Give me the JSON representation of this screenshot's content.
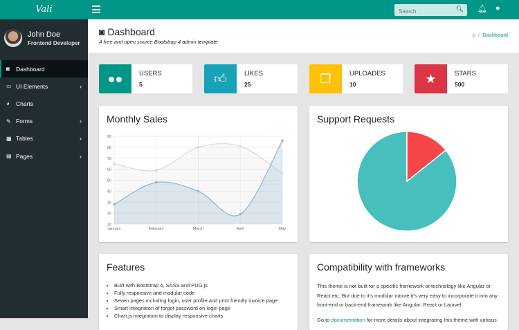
{
  "app": {
    "logo": "Vali"
  },
  "topbar": {
    "search_placeholder": "Search",
    "icons": [
      "menu-icon",
      "search-icon",
      "bell-icon",
      "user-icon"
    ]
  },
  "user": {
    "name": "John Doe",
    "role": "Frontend Developer"
  },
  "sidebar": {
    "items": [
      {
        "label": "Dashboard",
        "icon": "◙",
        "active": true,
        "chevron": false
      },
      {
        "label": "UI Elements",
        "icon": "▭",
        "chevron": true
      },
      {
        "label": "Charts",
        "icon": "◕",
        "chevron": false
      },
      {
        "label": "Forms",
        "icon": "✎",
        "chevron": true
      },
      {
        "label": "Tables",
        "icon": "▦",
        "chevron": true
      },
      {
        "label": "Pages",
        "icon": "▤",
        "chevron": true
      }
    ],
    "chevron": "›"
  },
  "header": {
    "title": "Dashboard",
    "subtitle": "A free and open source Bootstrap 4 admin template",
    "breadcrumb_home": "⌂",
    "breadcrumb_sep": "/",
    "breadcrumb_current": "Dashboard"
  },
  "widgets": [
    {
      "label": "USERS",
      "value": "5",
      "color": "#009688",
      "icon": "users"
    },
    {
      "label": "LIKES",
      "value": "25",
      "color": "#17a2b8",
      "icon": "thumbs-up"
    },
    {
      "label": "UPLOADES",
      "value": "10",
      "color": "#ffc107",
      "icon": "files"
    },
    {
      "label": "STARS",
      "value": "500",
      "color": "#dc3545",
      "icon": "star"
    }
  ],
  "cards": {
    "monthly_sales": "Monthly Sales",
    "support": "Support Requests",
    "features": "Features",
    "compat": "Compatibility with frameworks"
  },
  "features": [
    "Built with Bootstrap 4, SASS and PUG.js",
    "Fully responsive and modular code",
    "Seven pages including login, user profile and print friendly invoice page",
    "Smart integration of forgot password on login page",
    "Chart.js integration to display responsive charts"
  ],
  "compat": {
    "p1": "This theme is not built for a specific framework or technology like Angular or React etc. But due to it's modular nature it's very easy to incorporate it into any front-end or back-end framework like Angular, React or Laravel.",
    "p2_pre": "Go to ",
    "p2_link": "documentation",
    "p2_post": " for more details about integrating this theme with various"
  },
  "chart_data": [
    {
      "type": "line",
      "categories": [
        "January",
        "February",
        "March",
        "April",
        "May"
      ],
      "ylim": [
        10,
        90
      ],
      "yticks": [
        10,
        20,
        30,
        40,
        50,
        60,
        70,
        80,
        90
      ],
      "grid": true,
      "series": [
        {
          "values": [
            65,
            59,
            80,
            81,
            56
          ],
          "color": "#dcdcdc"
        },
        {
          "values": [
            28,
            48,
            40,
            19,
            86
          ],
          "color": "#97bbcd"
        }
      ]
    },
    {
      "type": "pie",
      "values": [
        300,
        50
      ],
      "colors": [
        "#46BFBD",
        "#F7464A"
      ]
    }
  ]
}
